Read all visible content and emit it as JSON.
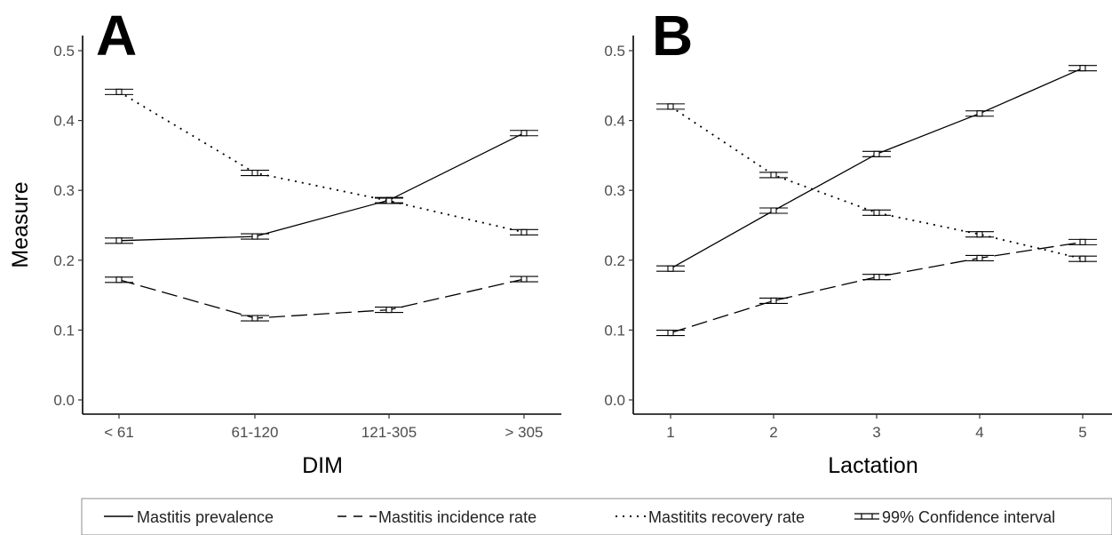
{
  "chart_data": [
    {
      "type": "line",
      "panel": "A",
      "xlabel": "DIM",
      "ylabel": "Measure",
      "categories": [
        "< 61",
        "61-120",
        "121-305",
        "> 305"
      ],
      "ylim": [
        0,
        0.5
      ],
      "yticks": [
        "0.0",
        "0.1",
        "0.2",
        "0.3",
        "0.4",
        "0.5"
      ],
      "grid": false,
      "series": [
        {
          "name": "Mastitis prevalence",
          "style": "solid",
          "values": [
            0.228,
            0.234,
            0.286,
            0.382
          ]
        },
        {
          "name": "Mastitis incidence rate",
          "style": "dashed",
          "values": [
            0.172,
            0.117,
            0.129,
            0.173
          ]
        },
        {
          "name": "Mastitits recovery rate",
          "style": "dotted",
          "values": [
            0.441,
            0.325,
            0.285,
            0.24
          ]
        }
      ]
    },
    {
      "type": "line",
      "panel": "B",
      "xlabel": "Lactation",
      "ylabel": "",
      "categories": [
        "1",
        "2",
        "3",
        "4",
        "5"
      ],
      "ylim": [
        0,
        0.5
      ],
      "yticks": [
        "0.0",
        "0.1",
        "0.2",
        "0.3",
        "0.4",
        "0.5"
      ],
      "grid": false,
      "series": [
        {
          "name": "Mastitis prevalence",
          "style": "solid",
          "values": [
            0.188,
            0.271,
            0.352,
            0.41,
            0.475
          ]
        },
        {
          "name": "Mastitis incidence rate",
          "style": "dashed",
          "values": [
            0.096,
            0.142,
            0.176,
            0.203,
            0.226
          ]
        },
        {
          "name": "Mastitits recovery rate",
          "style": "dotted",
          "values": [
            0.42,
            0.322,
            0.268,
            0.237,
            0.202
          ]
        }
      ]
    }
  ],
  "legend": {
    "placement": "bottom",
    "items": [
      {
        "label": "Mastitis prevalence",
        "style": "solid"
      },
      {
        "label": "Mastitis incidence rate",
        "style": "dashed"
      },
      {
        "label": "Mastitits recovery rate",
        "style": "dotted"
      },
      {
        "label": "99% Confidence interval",
        "style": "errorbar"
      }
    ]
  }
}
